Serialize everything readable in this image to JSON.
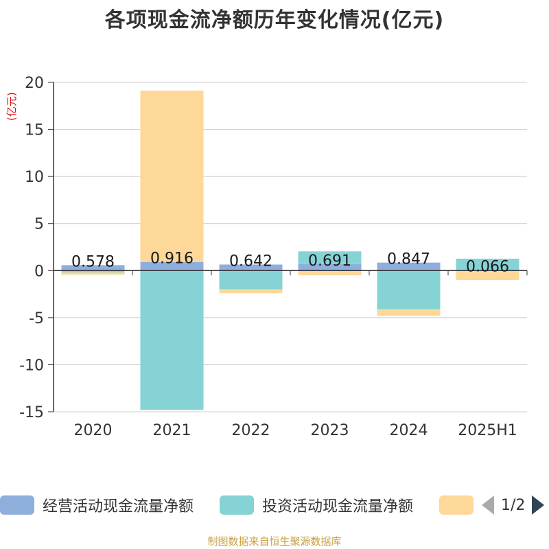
{
  "title": "各项现金流净额历年变化情况(亿元)",
  "unit_label": "(亿元)",
  "legend": {
    "items": [
      {
        "label": "经营活动现金流量净额",
        "color": "#8eaedc"
      },
      {
        "label": "投资活动现金流量净额",
        "color": "#86d3d6"
      },
      {
        "label": "",
        "color": "#fdd899"
      }
    ],
    "page": "1/2"
  },
  "source": "制图数据来自恒生聚源数据库",
  "chart_data": {
    "type": "bar",
    "stacked": true,
    "categories": [
      "2020",
      "2021",
      "2022",
      "2023",
      "2024",
      "2025H1"
    ],
    "ylim": [
      -15,
      20
    ],
    "yticks": [
      -15,
      -10,
      -5,
      0,
      5,
      10,
      15,
      20
    ],
    "grid": true,
    "series": [
      {
        "name": "经营活动现金流量净额",
        "color": "#8eaedc",
        "values": [
          0.578,
          0.916,
          0.642,
          0.691,
          0.847,
          0.066
        ],
        "labels": [
          "0.578",
          "0.916",
          "0.642",
          "0.691",
          "0.847",
          "0.066"
        ]
      },
      {
        "name": "投资活动现金流量净额",
        "color": "#86d3d6",
        "values": [
          -0.2,
          -14.8,
          -2.0,
          1.35,
          -4.1,
          1.2
        ]
      },
      {
        "color": "#fdd899",
        "values": [
          -0.25,
          18.2,
          -0.4,
          -0.5,
          -0.7,
          -1.0
        ]
      }
    ]
  }
}
